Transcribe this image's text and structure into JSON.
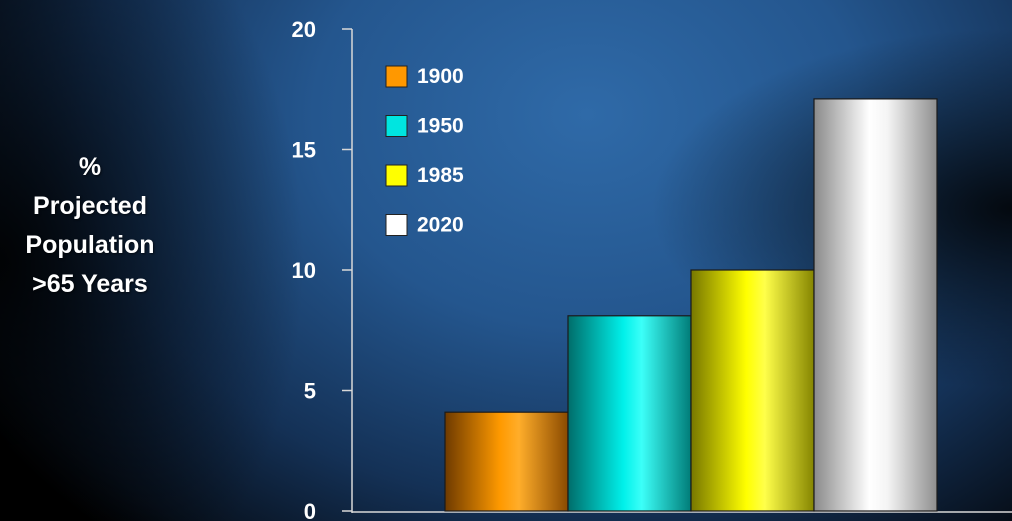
{
  "chart_data": {
    "type": "bar",
    "ylabel": "%\nProjected\nPopulation\n>65 Years",
    "ylim": [
      0,
      20
    ],
    "yticks": [
      "0",
      "5",
      "10",
      "15",
      "20"
    ],
    "series": [
      {
        "name": "1900",
        "value": 4.1,
        "color": "#ff9800"
      },
      {
        "name": "1950",
        "value": 8.1,
        "color": "#00e5e0"
      },
      {
        "name": "1985",
        "value": 10.0,
        "color": "#ffff00"
      },
      {
        "name": "2020",
        "value": 17.1,
        "color": "#ffffff"
      }
    ],
    "legend": "top-left",
    "grid": false
  }
}
